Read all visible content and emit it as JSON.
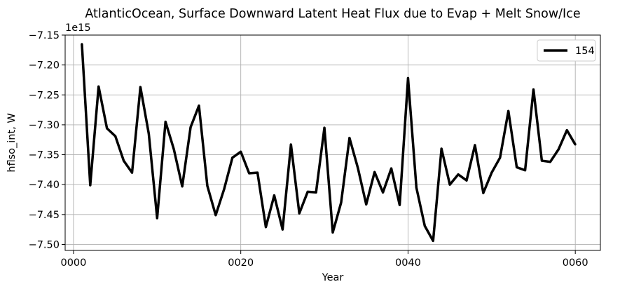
{
  "chart_data": {
    "type": "line",
    "title": "AtlanticOcean, Surface Downward Latent Heat Flux due to Evap + Melt Snow/Ice",
    "xlabel": "Year",
    "ylabel": "hflso_int, W",
    "y_offset_text": "1e15",
    "xlim": [
      -1,
      63
    ],
    "ylim": [
      -7.51,
      -7.15
    ],
    "xticks": [
      0,
      20,
      40,
      60
    ],
    "xtick_labels": [
      "0000",
      "0020",
      "0040",
      "0060"
    ],
    "yticks": [
      -7.5,
      -7.45,
      -7.4,
      -7.35,
      -7.3,
      -7.25,
      -7.2,
      -7.15
    ],
    "ytick_labels": [
      "−7.50",
      "−7.45",
      "−7.40",
      "−7.35",
      "−7.30",
      "−7.25",
      "−7.20",
      "−7.15"
    ],
    "grid": true,
    "legend_position": "top-right",
    "series": [
      {
        "name": "154",
        "color": "#000000",
        "x": [
          1,
          2,
          3,
          4,
          5,
          6,
          7,
          8,
          9,
          10,
          11,
          12,
          13,
          14,
          15,
          16,
          17,
          18,
          19,
          20,
          21,
          22,
          23,
          24,
          25,
          26,
          27,
          28,
          29,
          30,
          31,
          32,
          33,
          34,
          35,
          36,
          37,
          38,
          39,
          40,
          41,
          42,
          43,
          44,
          45,
          46,
          47,
          48,
          49,
          50,
          51,
          52,
          53,
          54,
          55,
          56,
          57,
          58,
          59,
          60
        ],
        "values": [
          -7.165,
          -7.401,
          -7.236,
          -7.306,
          -7.319,
          -7.36,
          -7.38,
          -7.237,
          -7.315,
          -7.456,
          -7.295,
          -7.341,
          -7.403,
          -7.304,
          -7.268,
          -7.402,
          -7.451,
          -7.408,
          -7.355,
          -7.345,
          -7.381,
          -7.38,
          -7.471,
          -7.418,
          -7.475,
          -7.333,
          -7.448,
          -7.412,
          -7.413,
          -7.305,
          -7.48,
          -7.43,
          -7.322,
          -7.372,
          -7.433,
          -7.379,
          -7.413,
          -7.373,
          -7.434,
          -7.222,
          -7.405,
          -7.469,
          -7.494,
          -7.34,
          -7.4,
          -7.383,
          -7.393,
          -7.334,
          -7.414,
          -7.38,
          -7.355,
          -7.277,
          -7.371,
          -7.376,
          -7.241,
          -7.36,
          -7.362,
          -7.341,
          -7.309,
          -7.333
        ]
      }
    ]
  }
}
